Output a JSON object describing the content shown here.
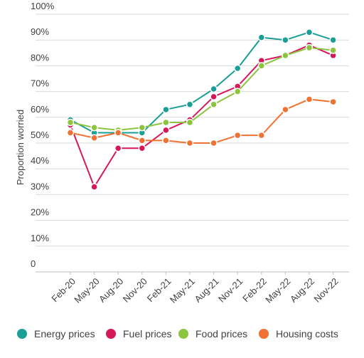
{
  "chart_data": {
    "type": "line",
    "title": "",
    "xlabel": "",
    "ylabel": "Proportion worried",
    "ylim": [
      0,
      100
    ],
    "yticks": [
      "0",
      "10%",
      "20%",
      "30%",
      "40%",
      "50%",
      "60%",
      "70%",
      "80%",
      "90%",
      "100%"
    ],
    "grid": true,
    "legend_position": "bottom",
    "categories": [
      "Feb-20",
      "May-20",
      "Aug-20",
      "Nov-20",
      "Feb-21",
      "May-21",
      "Aug-21",
      "Nov-21",
      "Feb-22",
      "May-22",
      "Aug-22",
      "Nov-22"
    ],
    "series": [
      {
        "name": "Energy prices",
        "color": "#1a9e95",
        "values": [
          59,
          54,
          54,
          54,
          63,
          65,
          71,
          79,
          91,
          90,
          93,
          90
        ]
      },
      {
        "name": "Fuel prices",
        "color": "#d6185a",
        "values": [
          57,
          33,
          48,
          48,
          55,
          59,
          68,
          72,
          82,
          84,
          88,
          84
        ]
      },
      {
        "name": "Food prices",
        "color": "#8cc43f",
        "values": [
          58,
          56,
          55,
          56,
          58,
          58,
          65,
          70,
          80,
          84,
          87,
          86
        ]
      },
      {
        "name": "Housing costs",
        "color": "#f07232",
        "values": [
          54,
          52,
          54,
          51,
          51,
          50,
          50,
          53,
          53,
          63,
          67,
          66
        ]
      }
    ]
  }
}
